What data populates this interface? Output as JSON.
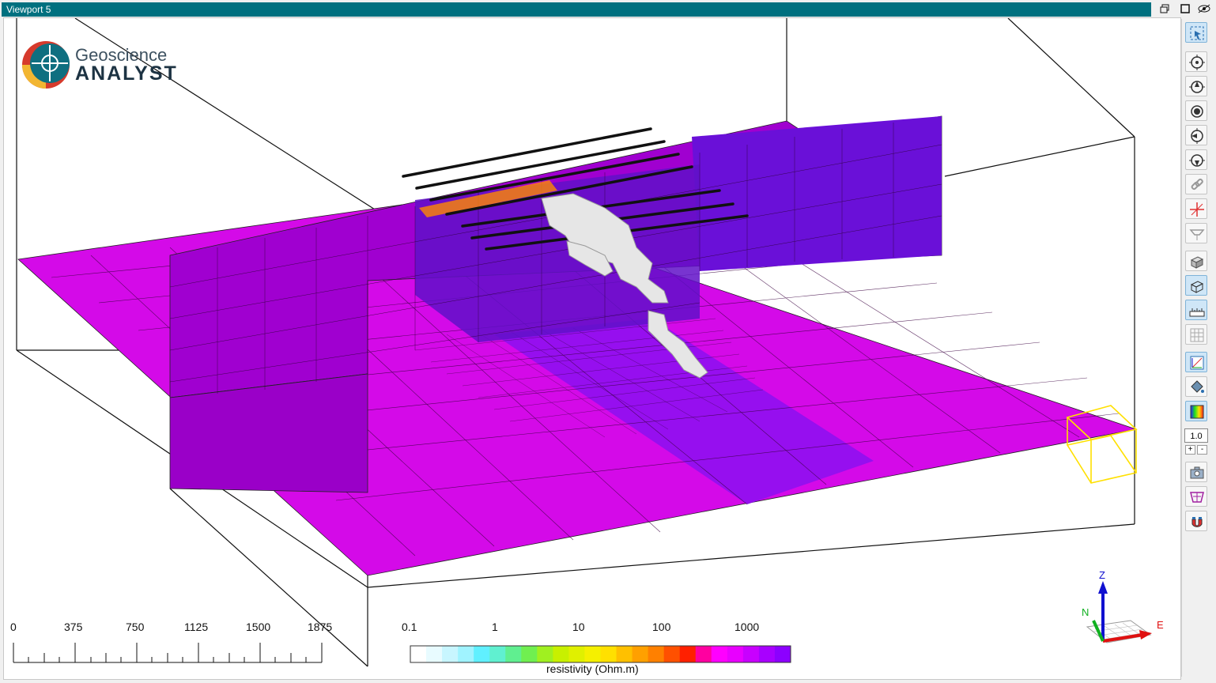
{
  "window": {
    "title": "Viewport 5"
  },
  "logo": {
    "line1": "Geoscience",
    "line2": "ANALYST"
  },
  "scale_bar": {
    "labels": [
      "0",
      "375",
      "750",
      "1125",
      "1500",
      "1875"
    ]
  },
  "colorbar": {
    "labels": [
      "0.1",
      "1",
      "10",
      "100",
      "1000"
    ],
    "title": "resistivity (Ohm.m)",
    "colors": [
      "#ffffff",
      "#e8fbff",
      "#c8f6ff",
      "#a0f3ff",
      "#60f0ff",
      "#60f0d0",
      "#60ef90",
      "#70ef50",
      "#a0f020",
      "#c8f000",
      "#e0f000",
      "#f5f000",
      "#ffe000",
      "#ffc000",
      "#ffa000",
      "#ff8000",
      "#ff5000",
      "#ff2000",
      "#ff00a0",
      "#ff00ff",
      "#e800ff",
      "#c800ff",
      "#a800ff",
      "#8c00ff"
    ]
  },
  "toolbar": {
    "zoom_value": "1.0",
    "plus": "+",
    "minus": "-"
  },
  "axes": {
    "z": "Z",
    "n": "N",
    "e": "E"
  },
  "colors": {
    "title_bar": "#00707f",
    "mesh_magenta": "#d400e8",
    "mesh_violet": "#7a20e0"
  }
}
